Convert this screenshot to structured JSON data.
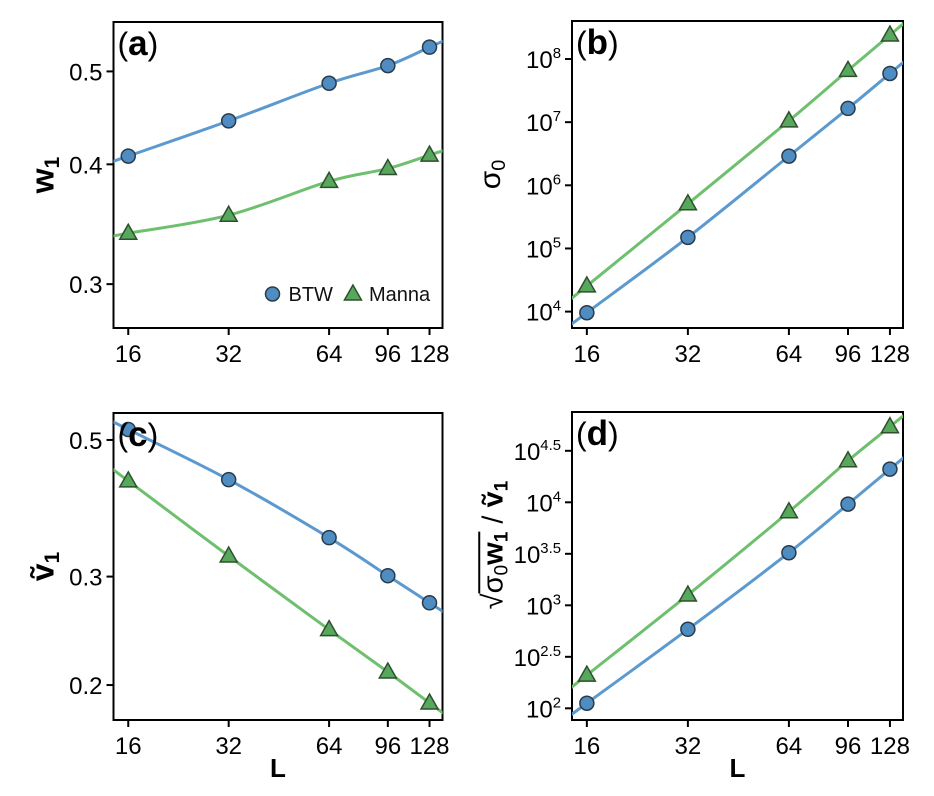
{
  "figure": {
    "background": "#ffffff"
  },
  "series_styles": {
    "BTW": {
      "line": "#5b99cf",
      "fill": "#4e8cc2",
      "edge": "#2a3b49",
      "marker": "circle"
    },
    "Manna": {
      "line": "#6ec06e",
      "fill": "#57a85c",
      "edge": "#2f4f2f",
      "marker": "triangle"
    }
  },
  "axis_color": "#000000",
  "text_color": "#000000",
  "legend": {
    "panel": "a",
    "items": [
      {
        "label": "BTW",
        "series": "BTW"
      },
      {
        "label": "Manna",
        "series": "Manna"
      }
    ]
  },
  "chart_data": [
    {
      "id": "a",
      "panel_label": "(a)",
      "type": "line",
      "xscale": "log2",
      "yscale": "log10",
      "x": [
        16,
        32,
        64,
        96,
        128
      ],
      "series": [
        {
          "name": "BTW",
          "values": [
            0.408,
            0.444,
            0.486,
            0.507,
            0.53
          ]
        },
        {
          "name": "Manna",
          "values": [
            0.339,
            0.354,
            0.384,
            0.396,
            0.409
          ]
        }
      ],
      "xlim": [
        14.45,
        140
      ],
      "ylim": [
        0.27,
        0.563
      ],
      "xticks": [
        16,
        32,
        64,
        96,
        128
      ],
      "xtick_labels": [
        "16",
        "32",
        "64",
        "96",
        "128"
      ],
      "yticks": [
        0.3,
        0.4,
        0.5
      ],
      "ytick_labels": [
        "0.3",
        "0.4",
        "0.5"
      ],
      "ylabel_parts": [
        {
          "t": "w",
          "bold": true
        },
        {
          "t": "1",
          "bold": true,
          "sub": true
        }
      ],
      "xlabel": "",
      "show_legend": true
    },
    {
      "id": "b",
      "panel_label": "(b)",
      "type": "line",
      "xscale": "log2",
      "yscale": "log10",
      "x": [
        16,
        32,
        64,
        96,
        128
      ],
      "series": [
        {
          "name": "BTW",
          "values": [
            9600,
            150000,
            2900000,
            16500000,
            59000000
          ]
        },
        {
          "name": "Manna",
          "values": [
            25500,
            510000,
            10500000,
            66000000,
            240000000
          ]
        }
      ],
      "xlim": [
        14.45,
        140
      ],
      "ylim": [
        5500,
        400000000
      ],
      "xticks": [
        16,
        32,
        64,
        96,
        128
      ],
      "xtick_labels": [
        "16",
        "32",
        "64",
        "96",
        "128"
      ],
      "yticks": [
        10000,
        100000,
        1000000,
        10000000,
        100000000
      ],
      "ytick_labels": [
        "10^4",
        "10^5",
        "10^6",
        "10^7",
        "10^8"
      ],
      "ylabel_parts": [
        {
          "t": "σ",
          "bold": false
        },
        {
          "t": "0",
          "bold": false,
          "sub": true
        }
      ],
      "xlabel": "",
      "show_legend": false
    },
    {
      "id": "c",
      "panel_label": "(c)",
      "type": "line",
      "xscale": "log2",
      "yscale": "log10",
      "x": [
        16,
        32,
        64,
        96,
        128
      ],
      "series": [
        {
          "name": "BTW",
          "values": [
            0.52,
            0.431,
            0.347,
            0.301,
            0.272
          ]
        },
        {
          "name": "Manna",
          "values": [
            0.429,
            0.324,
            0.246,
            0.21,
            0.187
          ]
        }
      ],
      "xlim": [
        14.45,
        140
      ],
      "ylim": [
        0.1755,
        0.553
      ],
      "xticks": [
        16,
        32,
        64,
        96,
        128
      ],
      "xtick_labels": [
        "16",
        "32",
        "64",
        "96",
        "128"
      ],
      "yticks": [
        0.2,
        0.3,
        0.5
      ],
      "ytick_labels": [
        "0.2",
        "0.3",
        "0.5"
      ],
      "ylabel_parts": [
        {
          "t": "ṽ",
          "bold": true
        },
        {
          "t": "1",
          "bold": true,
          "sub": true
        }
      ],
      "xlabel": "L",
      "show_legend": false
    },
    {
      "id": "d",
      "panel_label": "(d)",
      "type": "line",
      "xscale": "log2",
      "yscale": "log10",
      "x": [
        16,
        32,
        64,
        96,
        128
      ],
      "series": [
        {
          "name": "BTW",
          "values": [
            112,
            585,
            3240,
            9600,
            21000
          ]
        },
        {
          "name": "Manna",
          "values": [
            210,
            1260,
            8100,
            25300,
            54200
          ]
        }
      ],
      "xlim": [
        14.45,
        140
      ],
      "ylim": [
        77,
        75300
      ],
      "xticks": [
        16,
        32,
        64,
        96,
        128
      ],
      "xtick_labels": [
        "16",
        "32",
        "64",
        "96",
        "128"
      ],
      "yticks": [
        100,
        316.22777,
        1000,
        3162.2777,
        10000,
        31622.777
      ],
      "ytick_labels": [
        "10^2",
        "10^2.5",
        "10^3",
        "10^3.5",
        "10^4",
        "10^4.5"
      ],
      "ylabel_parts": [
        {
          "t": "√",
          "bold": false
        },
        {
          "t": "σ",
          "bold": false,
          "over": true
        },
        {
          "t": "0",
          "bold": false,
          "sub": true,
          "over": true
        },
        {
          "t": "w",
          "bold": true,
          "over": true
        },
        {
          "t": "1",
          "bold": true,
          "sub": true,
          "over": true
        },
        {
          "t": " / ",
          "bold": false
        },
        {
          "t": "ṽ",
          "bold": true
        },
        {
          "t": "1",
          "bold": true,
          "sub": true
        }
      ],
      "xlabel": "L",
      "show_legend": false
    }
  ]
}
